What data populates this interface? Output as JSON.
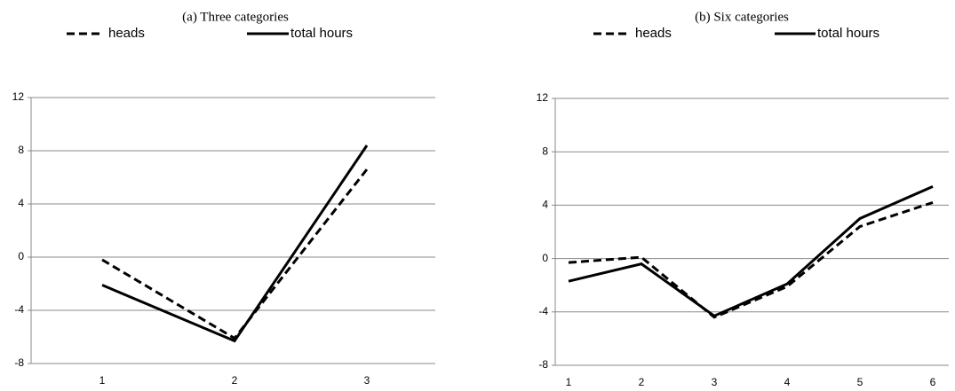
{
  "chart_data": [
    {
      "type": "line",
      "title": "(a) Three categories",
      "categories": [
        "1",
        "2",
        "3"
      ],
      "series": [
        {
          "name": "heads",
          "color": "#000000",
          "line_style": "dashed",
          "values": [
            -0.2,
            -6.1,
            6.6
          ]
        },
        {
          "name": "total hours",
          "color": "#000000",
          "line_style": "solid",
          "values": [
            -2.1,
            -6.3,
            8.4
          ]
        }
      ],
      "ylim": [
        -8,
        12
      ],
      "yticks": [
        -8,
        -4,
        0,
        4,
        8,
        12
      ],
      "grid": true,
      "legend": "top"
    },
    {
      "type": "line",
      "title": "(b) Six categories",
      "categories": [
        "1",
        "2",
        "3",
        "4",
        "5",
        "6"
      ],
      "series": [
        {
          "name": "heads",
          "color": "#000000",
          "line_style": "dashed",
          "values": [
            -0.3,
            0.1,
            -4.4,
            -2.1,
            2.4,
            4.2
          ]
        },
        {
          "name": "total hours",
          "color": "#000000",
          "line_style": "solid",
          "values": [
            -1.7,
            -0.4,
            -4.3,
            -1.9,
            3.0,
            5.4
          ]
        }
      ],
      "ylim": [
        -8,
        12
      ],
      "yticks": [
        -8,
        -4,
        0,
        4,
        8,
        12
      ],
      "grid": true,
      "legend": "top"
    }
  ]
}
